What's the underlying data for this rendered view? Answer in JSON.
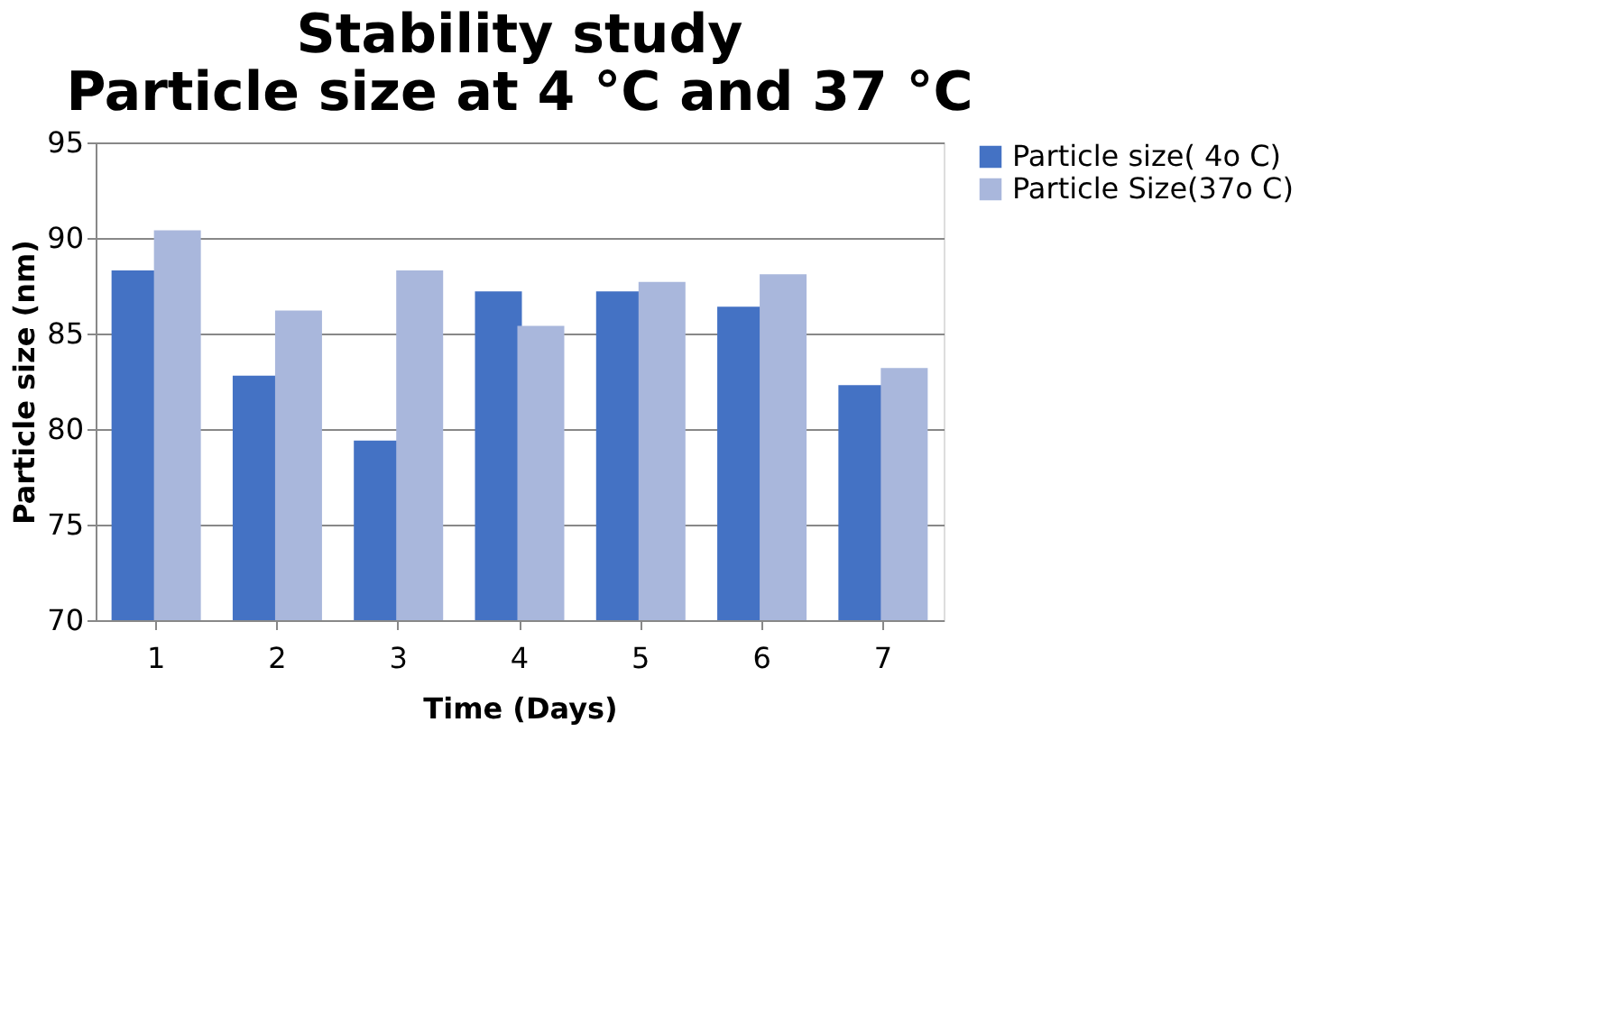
{
  "chart_data": {
    "type": "bar",
    "title": [
      "Stability study",
      "Particle size at 4 °C and 37 °C"
    ],
    "xlabel": "Time (Days)",
    "ylabel": "Particle size (nm)",
    "categories": [
      "1",
      "2",
      "3",
      "4",
      "5",
      "6",
      "7"
    ],
    "series": [
      {
        "name": "Particle size( 4o C)",
        "color": "#4472c4",
        "values": [
          88.3,
          82.8,
          79.4,
          87.2,
          87.2,
          86.4,
          82.3
        ]
      },
      {
        "name": "Particle Size(37o C)",
        "color": "#a9b7dc",
        "values": [
          90.4,
          86.2,
          88.3,
          85.4,
          87.7,
          88.1,
          83.2
        ]
      }
    ],
    "ylim": [
      70,
      95
    ],
    "yticks": [
      70,
      75,
      80,
      85,
      90,
      95
    ],
    "grid": "y",
    "legend": "right"
  }
}
